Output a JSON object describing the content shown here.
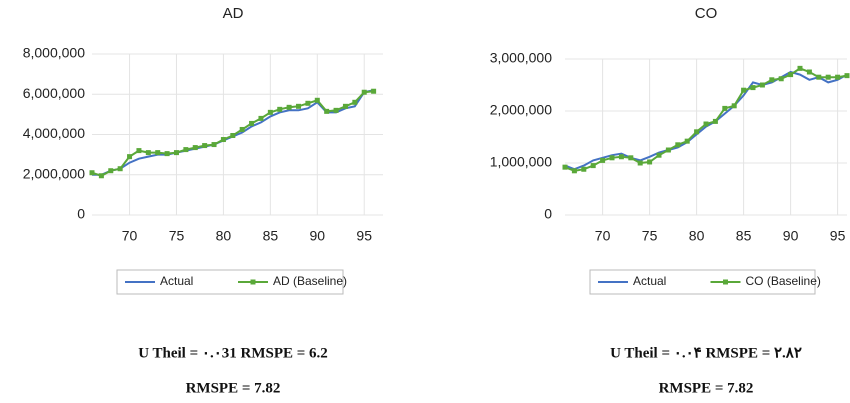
{
  "chart_data": [
    {
      "type": "line",
      "title": "AD",
      "x": [
        66,
        67,
        68,
        69,
        70,
        71,
        72,
        73,
        74,
        75,
        76,
        77,
        78,
        79,
        80,
        81,
        82,
        83,
        84,
        85,
        86,
        87,
        88,
        89,
        90,
        91,
        92,
        93,
        94,
        95,
        96
      ],
      "series": [
        {
          "name": "Actual",
          "color": "#4472c4",
          "marker": false,
          "values": [
            2000000,
            2000000,
            2200000,
            2300000,
            2600000,
            2800000,
            2900000,
            3000000,
            3000000,
            3100000,
            3200000,
            3300000,
            3400000,
            3500000,
            3700000,
            3900000,
            4100000,
            4400000,
            4600000,
            4900000,
            5100000,
            5200000,
            5200000,
            5300000,
            5600000,
            5100000,
            5100000,
            5300000,
            5400000,
            6100000,
            6200000
          ]
        },
        {
          "name": "AD (Baseline)",
          "color": "#5aa839",
          "marker": true,
          "values": [
            2100000,
            1950000,
            2200000,
            2300000,
            2900000,
            3200000,
            3100000,
            3100000,
            3050000,
            3100000,
            3250000,
            3350000,
            3450000,
            3500000,
            3750000,
            3950000,
            4250000,
            4550000,
            4800000,
            5100000,
            5250000,
            5350000,
            5400000,
            5550000,
            5700000,
            5150000,
            5200000,
            5400000,
            5600000,
            6100000,
            6150000
          ]
        }
      ],
      "xlim": [
        66,
        97
      ],
      "xticks": [
        70,
        75,
        80,
        85,
        90,
        95
      ],
      "ylim": [
        0,
        8000000
      ],
      "yticks": [
        0,
        {
          "value": 2000000,
          "label": "2,000,000"
        },
        {
          "value": 4000000,
          "label": "4,000,000"
        },
        {
          "value": 6000000,
          "label": "6,000,000"
        },
        {
          "value": 8000000,
          "label": "8,000,000"
        }
      ],
      "grid": true,
      "annotations": [
        "U Theil = ۰.۰31  RMSPE  = 6.2",
        "RMSPE  = 7.82"
      ]
    },
    {
      "type": "line",
      "title": "CO",
      "x": [
        66,
        67,
        68,
        69,
        70,
        71,
        72,
        73,
        74,
        75,
        76,
        77,
        78,
        79,
        80,
        81,
        82,
        83,
        84,
        85,
        86,
        87,
        88,
        89,
        90,
        91,
        92,
        93,
        94,
        95,
        96
      ],
      "series": [
        {
          "name": "Actual",
          "color": "#4472c4",
          "marker": false,
          "values": [
            950000,
            880000,
            950000,
            1050000,
            1100000,
            1150000,
            1180000,
            1100000,
            1050000,
            1120000,
            1200000,
            1250000,
            1300000,
            1400000,
            1550000,
            1700000,
            1800000,
            1950000,
            2100000,
            2300000,
            2550000,
            2500000,
            2550000,
            2650000,
            2750000,
            2700000,
            2600000,
            2650000,
            2550000,
            2600000,
            2700000
          ]
        },
        {
          "name": "CO (Baseline)",
          "color": "#5aa839",
          "marker": true,
          "values": [
            920000,
            850000,
            880000,
            950000,
            1050000,
            1100000,
            1120000,
            1100000,
            1000000,
            1020000,
            1150000,
            1250000,
            1350000,
            1420000,
            1600000,
            1750000,
            1800000,
            2050000,
            2100000,
            2400000,
            2450000,
            2500000,
            2600000,
            2620000,
            2700000,
            2820000,
            2750000,
            2650000,
            2650000,
            2650000,
            2680000
          ]
        }
      ],
      "xlim": [
        66,
        96
      ],
      "xticks": [
        70,
        75,
        80,
        85,
        90,
        95
      ],
      "ylim": [
        0,
        3000000
      ],
      "yticks": [
        0,
        {
          "value": 1000000,
          "label": "1,000,000"
        },
        {
          "value": 2000000,
          "label": "2,000,000"
        },
        {
          "value": 3000000,
          "label": "3,000,000"
        }
      ],
      "grid": true,
      "annotations": [
        "U Theil = ۰.۰۴  RMSPE  = ۲.۸۲",
        "RMSPE  = 7.82"
      ]
    }
  ]
}
